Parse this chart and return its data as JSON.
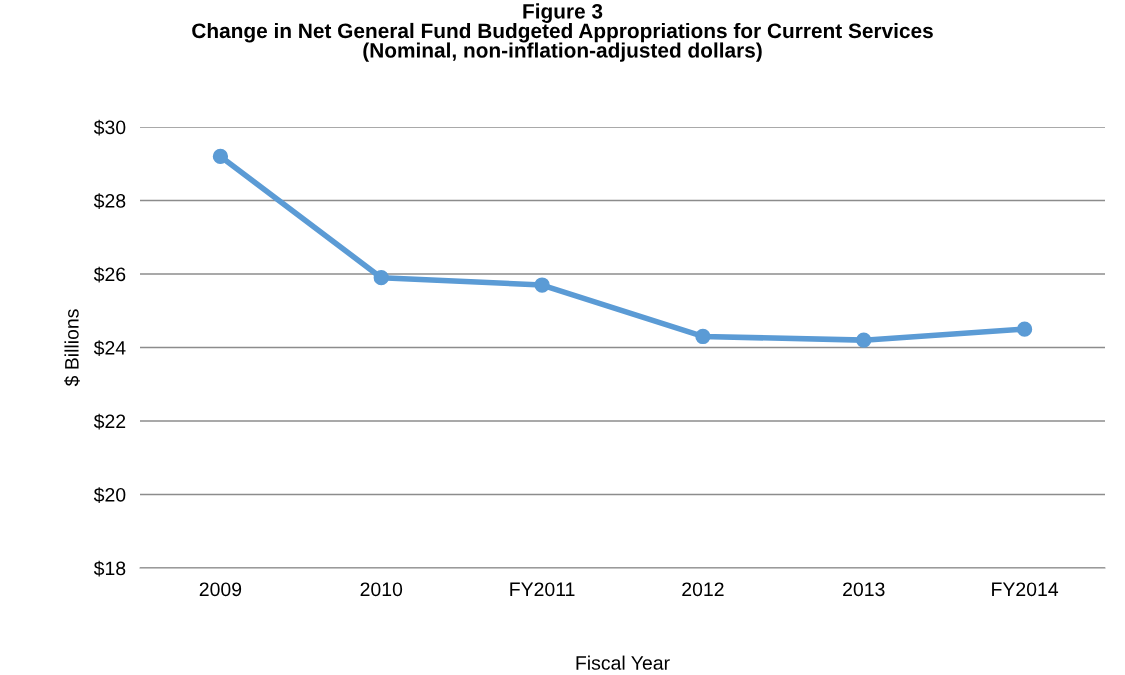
{
  "chart_data": {
    "type": "line",
    "title": "Figure 3\nChange in Net General Fund Budgeted Appropriations for Current Services\n(Nominal, non-inflation-adjusted dollars)",
    "xlabel": "Fiscal Year",
    "ylabel": "$ Billions",
    "categories": [
      "2009",
      "2010",
      "FY2011",
      "2012",
      "2013",
      "FY2014"
    ],
    "series": [
      {
        "color": "#5b9bd5",
        "values": [
          29.2,
          25.9,
          25.7,
          24.3,
          24.2,
          24.5
        ]
      }
    ],
    "ylim": [
      18,
      30
    ],
    "yticks": [
      {
        "value": 18,
        "label": "$18"
      },
      {
        "value": 20,
        "label": "$20"
      },
      {
        "value": 22,
        "label": "$22"
      },
      {
        "value": 24,
        "label": "$24"
      },
      {
        "value": 26,
        "label": "$26"
      },
      {
        "value": 28,
        "label": "$28"
      },
      {
        "value": 30,
        "label": "$30"
      }
    ],
    "grid": "y",
    "legend": false,
    "marker": "circle",
    "line_style": "solid"
  }
}
